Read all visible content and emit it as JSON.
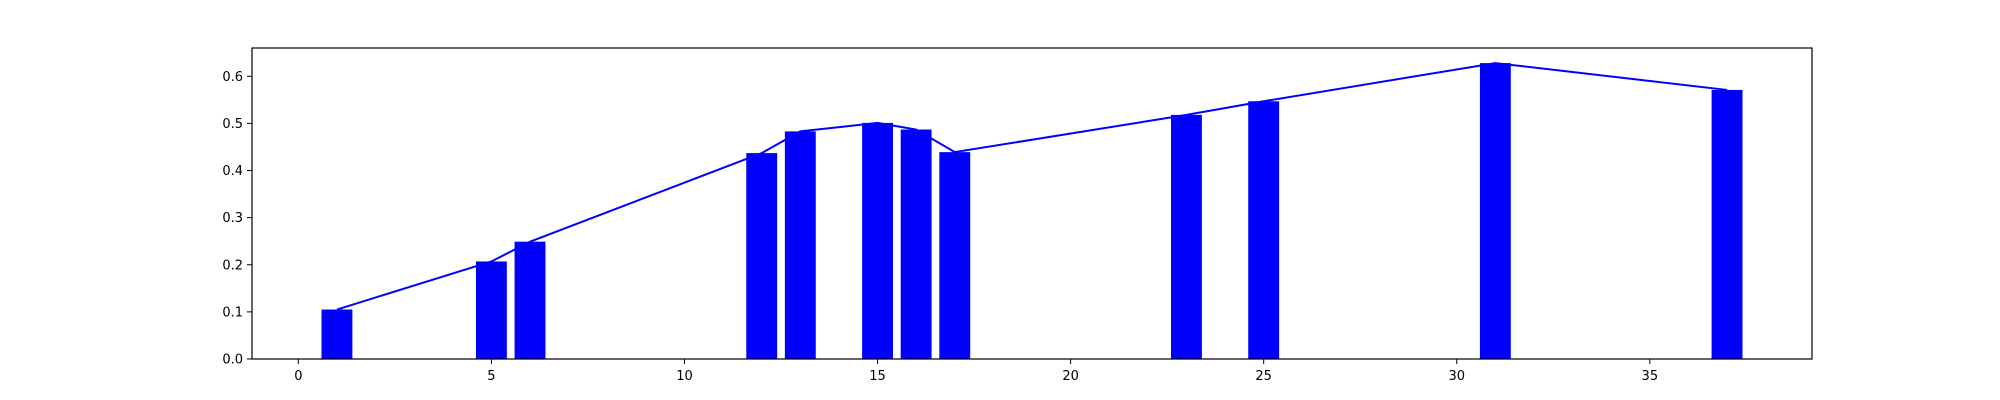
{
  "chart_data": {
    "type": "bar",
    "title": "",
    "xlabel": "",
    "ylabel": "",
    "x": [
      1,
      5,
      6,
      12,
      13,
      15,
      16,
      17,
      23,
      25,
      31,
      37
    ],
    "series": [
      {
        "values": [
          0.105,
          0.207,
          0.249,
          0.437,
          0.483,
          0.501,
          0.487,
          0.439,
          0.518,
          0.547,
          0.628,
          0.571
        ],
        "color": "#0000ff"
      },
      {
        "chart_type": "line",
        "values": [
          0.105,
          0.207,
          0.249,
          0.437,
          0.483,
          0.501,
          0.487,
          0.439,
          0.518,
          0.547,
          0.628,
          0.571
        ],
        "color": "#0000ff"
      }
    ],
    "xlim": [
      -1.2,
      39.2
    ],
    "ylim": [
      0,
      0.66
    ],
    "xticks": [
      0,
      5,
      10,
      15,
      20,
      25,
      30,
      35
    ],
    "xtick_labels": [
      "0",
      "5",
      "10",
      "15",
      "20",
      "25",
      "30",
      "35"
    ],
    "yticks": [
      0.0,
      0.1,
      0.2,
      0.3,
      0.4,
      0.5,
      0.6
    ],
    "ytick_labels": [
      "0.0",
      "0.1",
      "0.2",
      "0.3",
      "0.4",
      "0.5",
      "0.6"
    ],
    "grid": false,
    "legend": "none"
  }
}
